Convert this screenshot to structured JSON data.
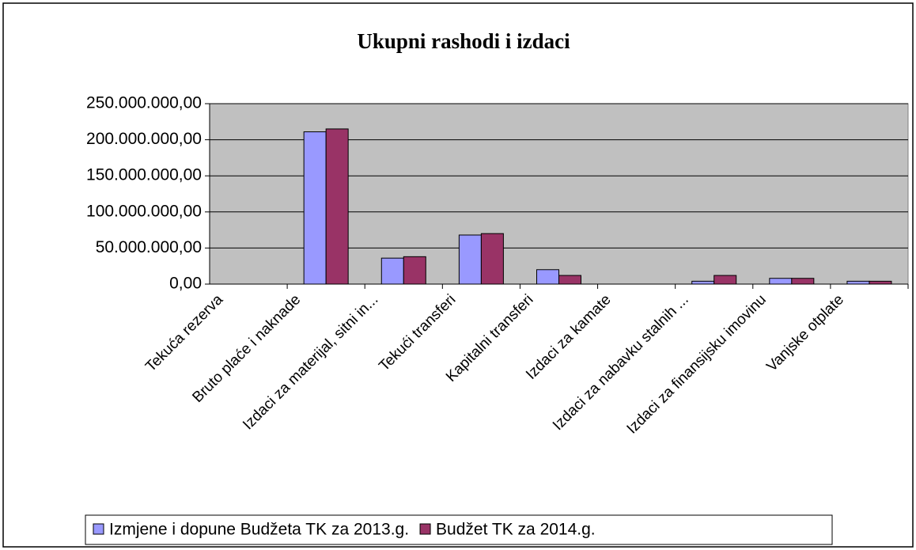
{
  "chart_data": {
    "type": "bar",
    "title": "Ukupni rashodi i izdaci",
    "categories": [
      "Tekuća rezerva",
      "Bruto plaće i naknade",
      "Izdaci za materijal, sitni in...",
      "Tekući transferi",
      "Kapitalni transferi",
      "Izdaci za kamate",
      "Izdaci za nabavku stalnih ...",
      "Izdaci za finansijsku imovinu",
      "Vanjske otplate"
    ],
    "series": [
      {
        "name": "Izmjene i dopune Budžeta TK za 2013.g.",
        "color": "#9999ff",
        "values": [
          0,
          211000000,
          36000000,
          68000000,
          20000000,
          0,
          4000000,
          8000000,
          4000000
        ]
      },
      {
        "name": "Budžet TK za 2014.g.",
        "color": "#993366",
        "values": [
          0,
          215000000,
          38000000,
          70000000,
          12000000,
          0,
          12000000,
          8000000,
          4000000
        ]
      }
    ],
    "ylim": [
      0,
      250000000
    ],
    "yticks": [
      {
        "value": 0,
        "label": "0,00"
      },
      {
        "value": 50000000,
        "label": "50.000.000,00"
      },
      {
        "value": 100000000,
        "label": "100.000.000,00"
      },
      {
        "value": 150000000,
        "label": "150.000.000,00"
      },
      {
        "value": 200000000,
        "label": "200.000.000,00"
      },
      {
        "value": 250000000,
        "label": "250.000.000,00"
      }
    ],
    "grid": true,
    "legend": "bottom"
  }
}
